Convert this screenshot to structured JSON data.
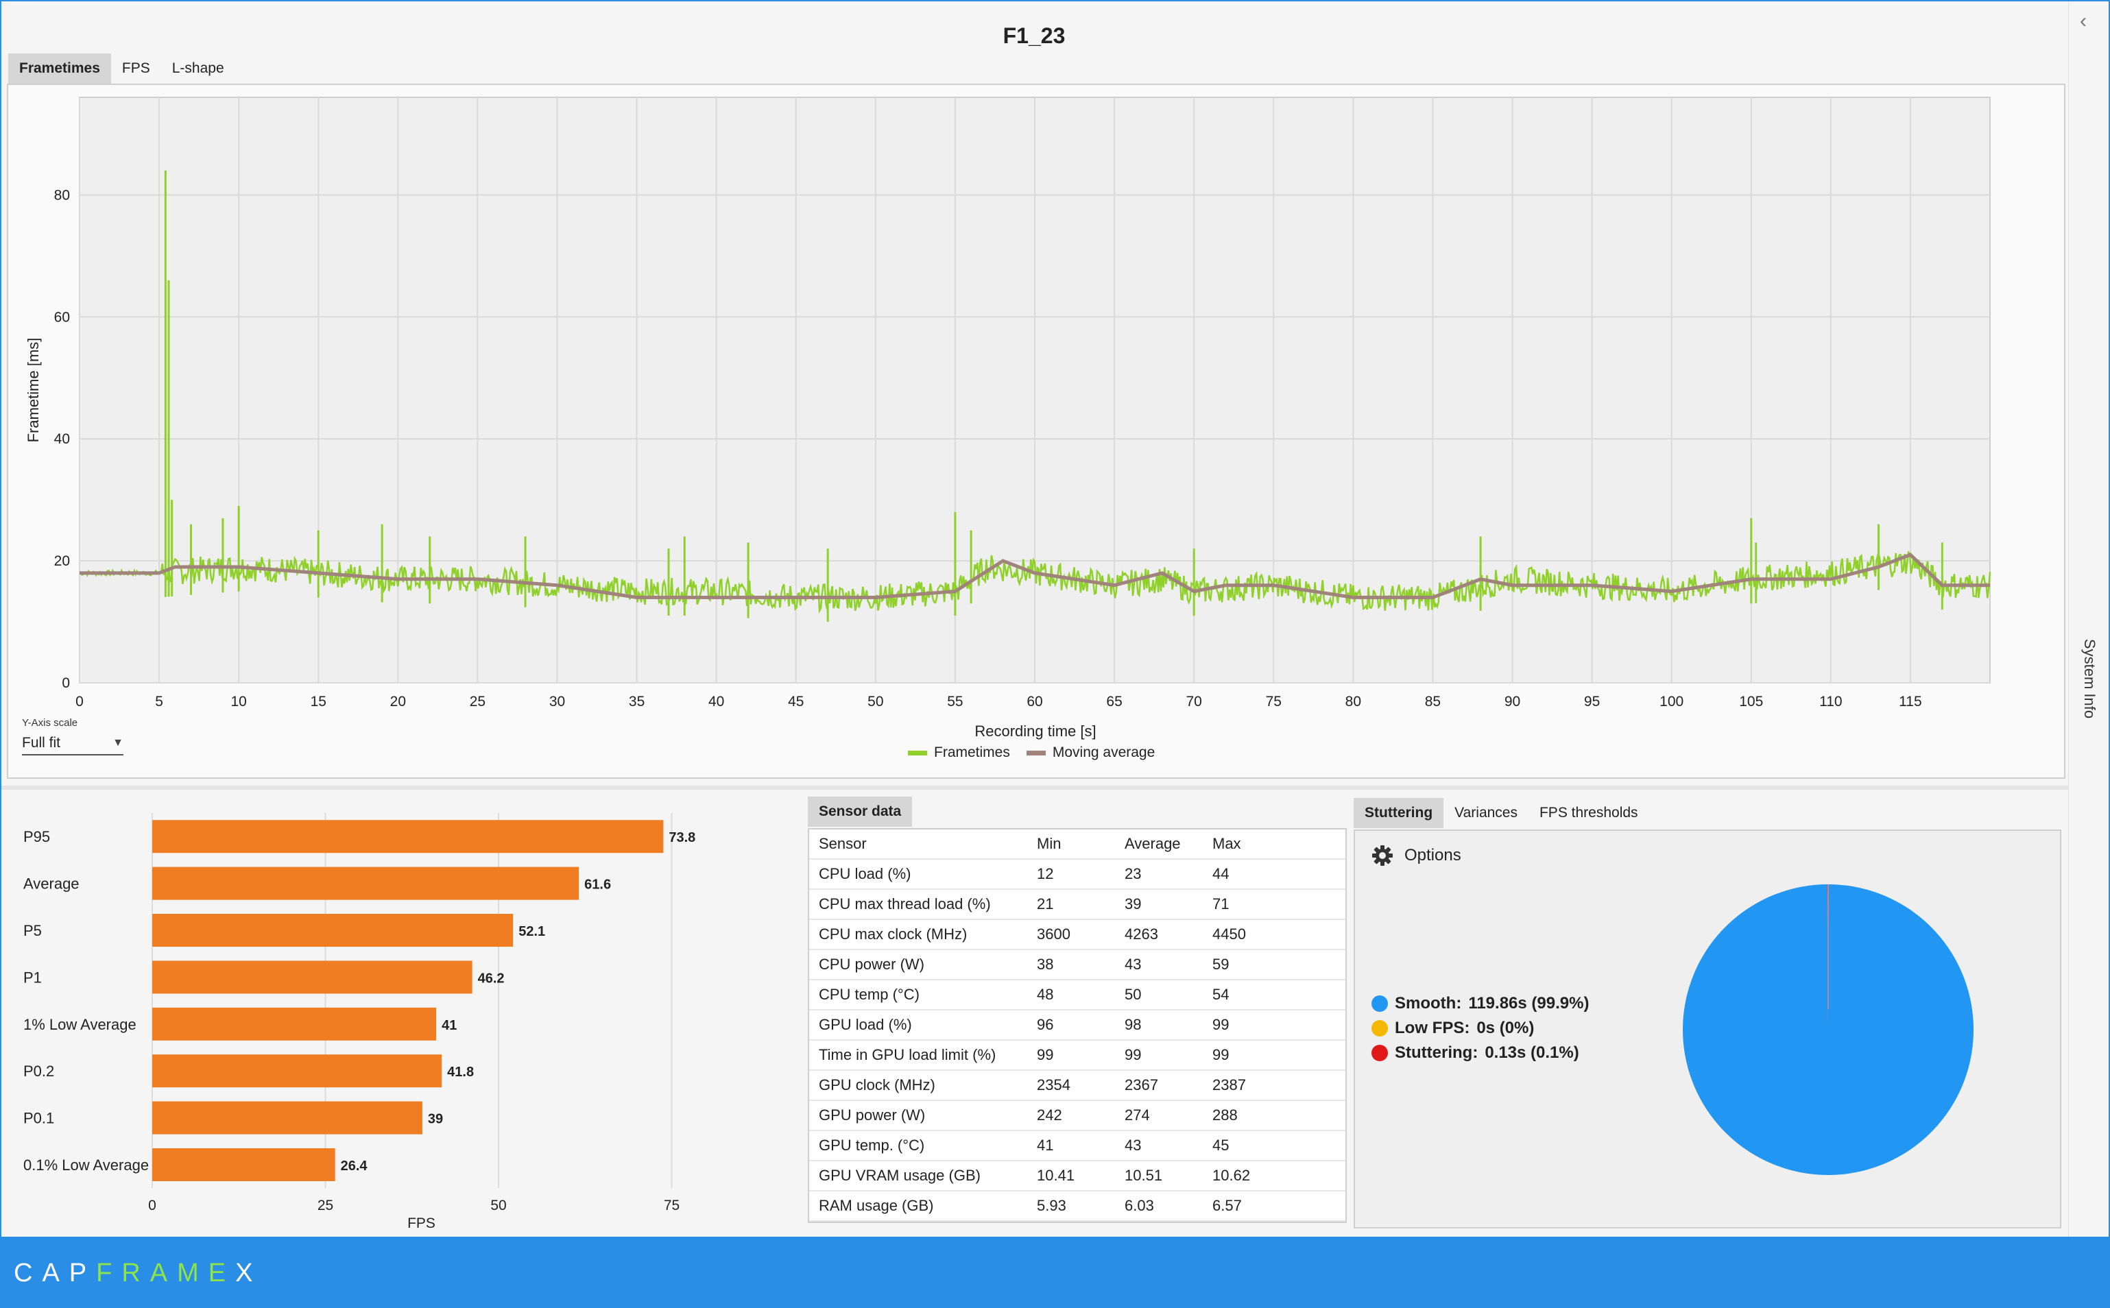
{
  "window": {
    "title": "F1_23"
  },
  "tabs_top": [
    {
      "label": "Frametimes",
      "active": true
    },
    {
      "label": "FPS",
      "active": false
    },
    {
      "label": "L-shape",
      "active": false
    }
  ],
  "frametime_chart": {
    "chart_data": {
      "type": "line",
      "xlabel": "Recording time [s]",
      "ylabel": "Frametime [ms]",
      "xlim": [
        0,
        120
      ],
      "ylim": [
        0,
        96
      ],
      "x_ticks": [
        "0",
        "5",
        "10",
        "15",
        "20",
        "25",
        "30",
        "35",
        "40",
        "45",
        "50",
        "55",
        "60",
        "65",
        "70",
        "75",
        "80",
        "85",
        "90",
        "95",
        "100",
        "105",
        "110",
        "115"
      ],
      "y_ticks": [
        "0",
        "20",
        "40",
        "60",
        "80"
      ],
      "grid": true,
      "legend_position": "bottom-center",
      "series": [
        {
          "name": "Frametimes",
          "color": "#8fd12a",
          "baseline_x": [
            0,
            5,
            10,
            15,
            20,
            25,
            30,
            35,
            40,
            45,
            50,
            55,
            57,
            60,
            65,
            68,
            70,
            75,
            80,
            85,
            90,
            95,
            100,
            105,
            110,
            115,
            117,
            120
          ],
          "baseline_y": [
            18,
            18,
            19,
            18,
            17,
            17,
            16,
            15,
            15,
            14,
            14,
            15,
            19,
            18,
            16,
            17,
            15,
            16,
            14,
            14,
            17,
            16,
            15,
            17,
            18,
            20,
            16,
            16
          ],
          "spikes_x": [
            5.4,
            5.6,
            5.8,
            7,
            9,
            10,
            15,
            19,
            22,
            28,
            37,
            38,
            42,
            47,
            55,
            56,
            70,
            88,
            105,
            105.3,
            113,
            117
          ],
          "spikes_y": [
            84,
            66,
            30,
            26,
            27,
            29,
            25,
            26,
            24,
            24,
            22,
            24,
            23,
            22,
            28,
            25,
            22,
            24,
            27,
            23,
            26,
            23
          ]
        },
        {
          "name": "Moving average",
          "color": "#a0837a",
          "x": [
            0,
            5,
            6,
            10,
            15,
            20,
            25,
            30,
            35,
            40,
            45,
            50,
            55,
            58,
            60,
            65,
            68,
            70,
            72,
            75,
            80,
            85,
            88,
            90,
            95,
            100,
            105,
            110,
            113,
            115,
            117,
            120
          ],
          "y": [
            18,
            18,
            19,
            19,
            18,
            17,
            17,
            16,
            14,
            14,
            14,
            14,
            15,
            20,
            18,
            16,
            18,
            15,
            16,
            16,
            14,
            14,
            17,
            16,
            16,
            15,
            17,
            17,
            19,
            21,
            16,
            16
          ]
        }
      ]
    },
    "y_axis_scale_caption": "Y-Axis scale",
    "y_axis_scale_value": "Full fit"
  },
  "fps_bars": {
    "chart_data": {
      "type": "bar",
      "orientation": "horizontal",
      "categories": [
        "P95",
        "Average",
        "P5",
        "P1",
        "1% Low Average",
        "P0.2",
        "P0.1",
        "0.1% Low Average"
      ],
      "values": [
        73.8,
        61.6,
        52.1,
        46.2,
        41,
        41.8,
        39,
        26.4
      ],
      "value_labels": [
        "73.8",
        "61.6",
        "52.1",
        "46.2",
        "41",
        "41.8",
        "39",
        "26.4"
      ],
      "xlabel": "FPS",
      "xlim": [
        0,
        80
      ],
      "x_ticks": [
        "0",
        "25",
        "50",
        "75"
      ],
      "color": "#f07d22"
    }
  },
  "sensor": {
    "tab_label": "Sensor data",
    "headers": [
      "Sensor",
      "Min",
      "Average",
      "Max"
    ],
    "rows": [
      [
        "CPU load (%)",
        "12",
        "23",
        "44"
      ],
      [
        "CPU max thread load (%)",
        "21",
        "39",
        "71"
      ],
      [
        "CPU max clock (MHz)",
        "3600",
        "4263",
        "4450"
      ],
      [
        "CPU power (W)",
        "38",
        "43",
        "59"
      ],
      [
        "CPU temp (°C)",
        "48",
        "50",
        "54"
      ],
      [
        "GPU load (%)",
        "96",
        "98",
        "99"
      ],
      [
        "Time in GPU load limit (%)",
        "99",
        "99",
        "99"
      ],
      [
        "GPU clock (MHz)",
        "2354",
        "2367",
        "2387"
      ],
      [
        "GPU power (W)",
        "242",
        "274",
        "288"
      ],
      [
        "GPU temp. (°C)",
        "41",
        "43",
        "45"
      ],
      [
        "GPU VRAM usage (GB)",
        "10.41",
        "10.51",
        "10.62"
      ],
      [
        "RAM usage (GB)",
        "5.93",
        "6.03",
        "6.57"
      ]
    ]
  },
  "stutter_tabs": [
    {
      "label": "Stuttering",
      "active": true
    },
    {
      "label": "Variances",
      "active": false
    },
    {
      "label": "FPS thresholds",
      "active": false
    }
  ],
  "stuttering": {
    "options_label": "Options",
    "options_icon": "gear-icon",
    "legend": [
      {
        "label": "Smooth:",
        "value": "119.86s (99.9%)",
        "color": "#2196f3"
      },
      {
        "label": "Low FPS:",
        "value": "0s (0%)",
        "color": "#f5b800"
      },
      {
        "label": "Stuttering:",
        "value": "0.13s (0.1%)",
        "color": "#e01818"
      }
    ],
    "chart_data": {
      "type": "pie",
      "categories": [
        "Smooth",
        "Low FPS",
        "Stuttering"
      ],
      "values": [
        119.86,
        0,
        0.13
      ],
      "colors": [
        "#2196f3",
        "#f5b800",
        "#e01818"
      ]
    }
  },
  "sidebar": {
    "label": "System Info",
    "collapse_icon": "chevron-left-icon"
  },
  "footer": {
    "logo_a": "CAP",
    "logo_b": "FRAME",
    "logo_c": "X"
  }
}
